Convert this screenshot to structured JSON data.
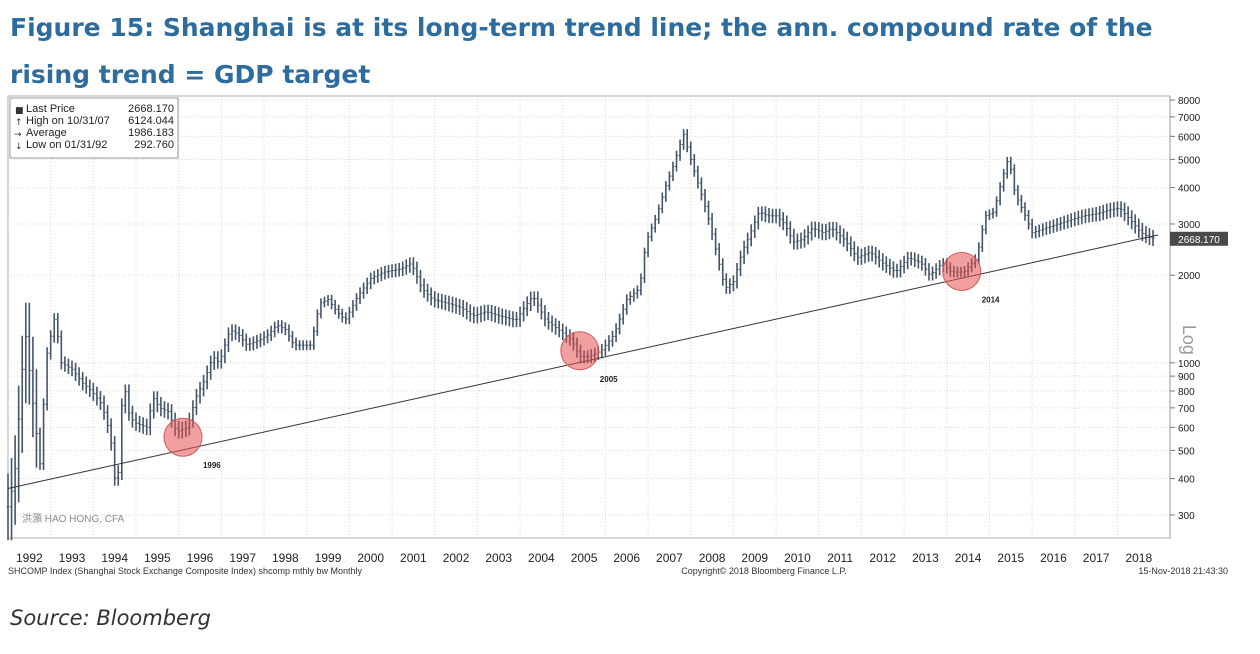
{
  "page": {
    "title_line1": "Figure 15: Shanghai is at its long-term trend line; the ann. compound rate of the",
    "title_line2": "rising trend = GDP target",
    "source": "Source: Bloomberg"
  },
  "chart_data": {
    "type": "line",
    "scale": "log",
    "style": "monthly high-low price bars",
    "ylim": [
      250,
      8000
    ],
    "xlim": [
      1992.0,
      2018.95
    ],
    "grid": true,
    "x_tick_labels": [
      "1992",
      "1993",
      "1994",
      "1995",
      "1996",
      "1997",
      "1998",
      "1999",
      "2000",
      "2001",
      "2002",
      "2003",
      "2004",
      "2005",
      "2006",
      "2007",
      "2008",
      "2009",
      "2010",
      "2011",
      "2012",
      "2013",
      "2014",
      "2015",
      "2016",
      "2017",
      "2018"
    ],
    "y_ticks": [
      300,
      400,
      500,
      600,
      700,
      800,
      900,
      1000,
      2000,
      3000,
      4000,
      5000,
      6000,
      7000,
      8000
    ],
    "y_tick_labels_shown": [
      "300",
      "400",
      "500",
      "600",
      "700",
      "800",
      "900",
      "1000",
      "2000",
      "3000",
      "4000",
      "5000",
      "6000",
      "7000",
      "8000"
    ],
    "y_axis_label": "Log",
    "legend": {
      "position": "top-left",
      "items": [
        {
          "label": "Last Price",
          "value": "2668.170"
        },
        {
          "label": "High on 10/31/07",
          "value": "6124.044"
        },
        {
          "label": "Average",
          "value": "1986.183"
        },
        {
          "label": "Low on 01/31/92",
          "value": "292.760"
        }
      ]
    },
    "last_price_label": "2668.170",
    "last_price": 2668.17,
    "series": [
      {
        "values_note": "approximate monthly path of the index",
        "points": [
          [
            1992.0,
            320
          ],
          [
            1992.15,
            400
          ],
          [
            1992.4,
            1300
          ],
          [
            1992.55,
            800
          ],
          [
            1992.75,
            450
          ],
          [
            1992.9,
            1050
          ],
          [
            1993.1,
            1450
          ],
          [
            1993.25,
            1000
          ],
          [
            1993.5,
            950
          ],
          [
            1993.75,
            850
          ],
          [
            1993.95,
            800
          ],
          [
            1994.2,
            720
          ],
          [
            1994.4,
            560
          ],
          [
            1994.55,
            340
          ],
          [
            1994.7,
            880
          ],
          [
            1994.85,
            650
          ],
          [
            1995.0,
            620
          ],
          [
            1995.25,
            600
          ],
          [
            1995.4,
            760
          ],
          [
            1995.55,
            700
          ],
          [
            1995.75,
            680
          ],
          [
            1995.95,
            580
          ],
          [
            1996.2,
            600
          ],
          [
            1996.4,
            760
          ],
          [
            1996.6,
            870
          ],
          [
            1996.8,
            1050
          ],
          [
            1996.95,
            1000
          ],
          [
            1997.2,
            1300
          ],
          [
            1997.4,
            1250
          ],
          [
            1997.6,
            1150
          ],
          [
            1997.9,
            1200
          ],
          [
            1998.1,
            1250
          ],
          [
            1998.3,
            1350
          ],
          [
            1998.5,
            1300
          ],
          [
            1998.7,
            1150
          ],
          [
            1998.95,
            1150
          ],
          [
            1999.1,
            1150
          ],
          [
            1999.3,
            1600
          ],
          [
            1999.5,
            1650
          ],
          [
            1999.7,
            1500
          ],
          [
            1999.9,
            1400
          ],
          [
            2000.2,
            1700
          ],
          [
            2000.5,
            1950
          ],
          [
            2000.8,
            2050
          ],
          [
            2001.2,
            2100
          ],
          [
            2001.45,
            2200
          ],
          [
            2001.7,
            1800
          ],
          [
            2001.95,
            1650
          ],
          [
            2002.3,
            1600
          ],
          [
            2002.6,
            1550
          ],
          [
            2002.9,
            1450
          ],
          [
            2003.2,
            1500
          ],
          [
            2003.5,
            1450
          ],
          [
            2003.9,
            1400
          ],
          [
            2004.1,
            1550
          ],
          [
            2004.3,
            1700
          ],
          [
            2004.6,
            1400
          ],
          [
            2004.9,
            1300
          ],
          [
            2005.2,
            1200
          ],
          [
            2005.4,
            1050
          ],
          [
            2005.6,
            1050
          ],
          [
            2005.9,
            1100
          ],
          [
            2006.2,
            1250
          ],
          [
            2006.5,
            1650
          ],
          [
            2006.8,
            1800
          ],
          [
            2006.95,
            2600
          ],
          [
            2007.2,
            3200
          ],
          [
            2007.4,
            4000
          ],
          [
            2007.6,
            4800
          ],
          [
            2007.83,
            6124
          ],
          [
            2008.0,
            5000
          ],
          [
            2008.2,
            4000
          ],
          [
            2008.4,
            3200
          ],
          [
            2008.6,
            2400
          ],
          [
            2008.8,
            1800
          ],
          [
            2009.0,
            1900
          ],
          [
            2009.2,
            2400
          ],
          [
            2009.4,
            2800
          ],
          [
            2009.6,
            3300
          ],
          [
            2009.8,
            3200
          ],
          [
            2010.0,
            3200
          ],
          [
            2010.2,
            3000
          ],
          [
            2010.4,
            2600
          ],
          [
            2010.6,
            2650
          ],
          [
            2010.85,
            2900
          ],
          [
            2011.1,
            2800
          ],
          [
            2011.3,
            2900
          ],
          [
            2011.6,
            2650
          ],
          [
            2011.9,
            2300
          ],
          [
            2012.2,
            2400
          ],
          [
            2012.5,
            2200
          ],
          [
            2012.8,
            2050
          ],
          [
            2013.1,
            2300
          ],
          [
            2013.4,
            2200
          ],
          [
            2013.6,
            2000
          ],
          [
            2013.9,
            2200
          ],
          [
            2014.1,
            2050
          ],
          [
            2014.4,
            2050
          ],
          [
            2014.7,
            2300
          ],
          [
            2014.9,
            3200
          ],
          [
            2015.1,
            3300
          ],
          [
            2015.3,
            4300
          ],
          [
            2015.45,
            5100
          ],
          [
            2015.6,
            3800
          ],
          [
            2015.8,
            3300
          ],
          [
            2016.0,
            2800
          ],
          [
            2016.3,
            2900
          ],
          [
            2016.6,
            3000
          ],
          [
            2016.9,
            3100
          ],
          [
            2017.2,
            3200
          ],
          [
            2017.5,
            3250
          ],
          [
            2017.8,
            3350
          ],
          [
            2018.05,
            3400
          ],
          [
            2018.3,
            3100
          ],
          [
            2018.55,
            2800
          ],
          [
            2018.75,
            2700
          ],
          [
            2018.88,
            2668
          ]
        ]
      }
    ],
    "trend_line": {
      "start": [
        1992.0,
        370
      ],
      "end": [
        2018.95,
        2750
      ]
    },
    "highlights": [
      {
        "label": "1996",
        "x": 1996.1,
        "y": 555
      },
      {
        "label": "2005",
        "x": 2005.4,
        "y": 1100
      },
      {
        "label": "2014",
        "x": 2014.35,
        "y": 2060
      }
    ],
    "watermark": "洪灝 HAO HONG, CFA",
    "footer": {
      "left": "SHCOMP Index (Shanghai Stock Exchange Composite Index) shcomp mthly bw  Monthly",
      "center": "Copyright© 2018 Bloomberg Finance L.P.",
      "right": "15-Nov-2018 21:43:30"
    }
  }
}
